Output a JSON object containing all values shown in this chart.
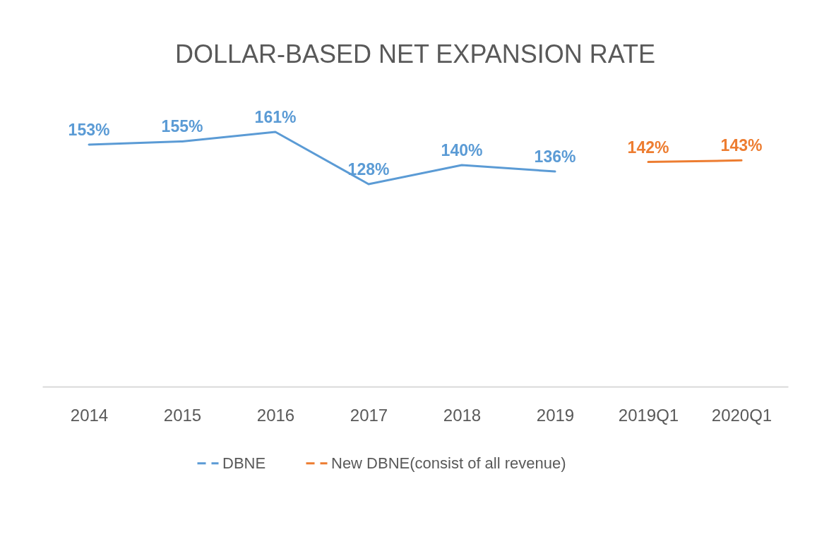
{
  "chart_data": {
    "type": "line",
    "title": "DOLLAR-BASED NET EXPANSION RATE",
    "categories": [
      "2014",
      "2015",
      "2016",
      "2017",
      "2018",
      "2019",
      "2019Q1",
      "2020Q1"
    ],
    "series": [
      {
        "name": "DBNE",
        "color": "#5b9bd5",
        "values": [
          153,
          155,
          161,
          128,
          140,
          136,
          null,
          null
        ],
        "value_labels": [
          "153%",
          "155%",
          "161%",
          "128%",
          "140%",
          "136%",
          null,
          null
        ]
      },
      {
        "name": "New DBNE(consist of all revenue)",
        "color": "#ed7d31",
        "values": [
          null,
          null,
          null,
          null,
          null,
          null,
          142,
          143
        ],
        "value_labels": [
          null,
          null,
          null,
          null,
          null,
          null,
          "142%",
          "143%"
        ]
      }
    ],
    "tick_labels": "x",
    "legend": "bottom",
    "line_style": "solid"
  }
}
